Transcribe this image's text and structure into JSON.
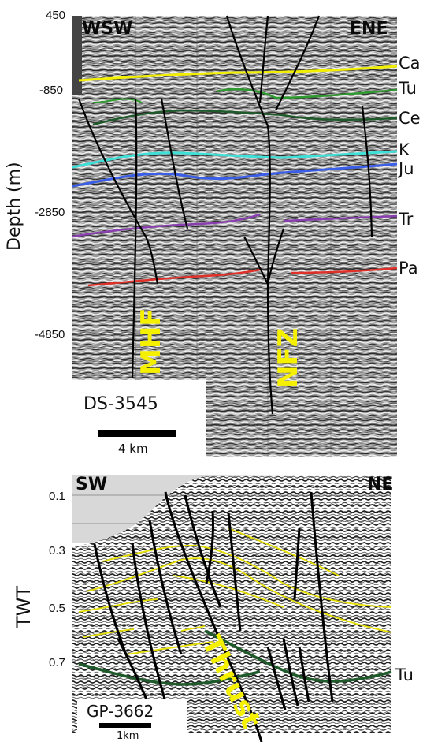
{
  "top_section": {
    "name": "DS-3545",
    "direction_left": "WSW",
    "direction_right": "ENE",
    "axis_label": "Depth (m)",
    "ticks": [
      "450",
      "-850",
      "-2850",
      "-4850"
    ],
    "horizons": [
      "Ca",
      "Tu",
      "Ce",
      "K",
      "Ju",
      "Tr",
      "Pa"
    ],
    "faults": [
      "MHF",
      "NFZ"
    ],
    "scale_label": "4 km",
    "colors": {
      "Ca": "#f2f000",
      "Tu": "#2f9a2f",
      "Ce": "#1f5a2a",
      "K": "#3fe0d8",
      "Ju": "#3b5ee8",
      "Tr": "#8a3fb0",
      "Pa": "#e0302a"
    }
  },
  "bottom_section": {
    "name": "GP-3662",
    "direction_left": "SW",
    "direction_right": "NE",
    "axis_label": "TWT",
    "ticks": [
      "0.1",
      "0.3",
      "0.5",
      "0.7"
    ],
    "horizon": "Tu",
    "fault": "Thrust",
    "scale_label": "1km",
    "colors": {
      "yellow": "#e6e000",
      "green": "#1f5a2a"
    }
  }
}
